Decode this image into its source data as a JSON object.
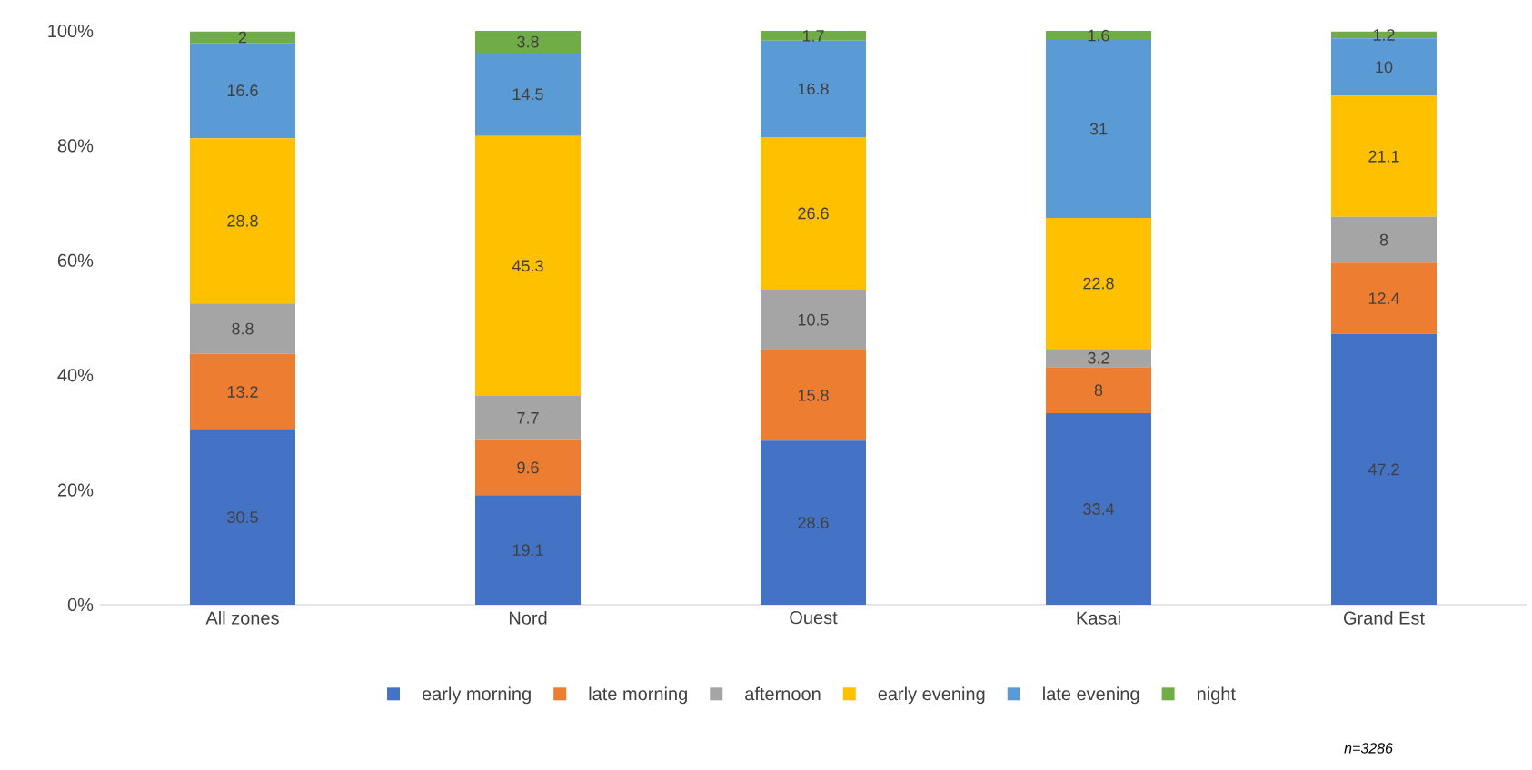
{
  "chart_data": {
    "type": "bar",
    "stacked": true,
    "categories": [
      "All zones",
      "Nord",
      "Ouest",
      "Kasai",
      "Grand Est"
    ],
    "series": [
      {
        "name": "early morning",
        "color": "#4472c4",
        "values": [
          30.5,
          19.1,
          28.6,
          33.4,
          47.2
        ]
      },
      {
        "name": "late morning",
        "color": "#ed7d31",
        "values": [
          13.2,
          9.6,
          15.8,
          8,
          12.4
        ]
      },
      {
        "name": "afternoon",
        "color": "#a5a5a5",
        "values": [
          8.8,
          7.7,
          10.5,
          3.2,
          8
        ]
      },
      {
        "name": "early evening",
        "color": "#ffc000",
        "values": [
          28.8,
          45.3,
          26.6,
          22.8,
          21.1
        ]
      },
      {
        "name": "late evening",
        "color": "#5b9bd5",
        "values": [
          16.6,
          14.5,
          16.8,
          31,
          10
        ]
      },
      {
        "name": "night",
        "color": "#70ad47",
        "values": [
          2,
          3.8,
          1.7,
          1.6,
          1.2
        ]
      }
    ],
    "ylim": [
      0,
      100
    ],
    "yticks": [
      {
        "value": 0,
        "label": "0%"
      },
      {
        "value": 20,
        "label": "20%"
      },
      {
        "value": 40,
        "label": "40%"
      },
      {
        "value": 60,
        "label": "60%"
      },
      {
        "value": 80,
        "label": "80%"
      },
      {
        "value": 100,
        "label": "100%"
      }
    ],
    "data_labels": true,
    "legend": "bottom",
    "annotations": [
      "n=3286"
    ]
  }
}
